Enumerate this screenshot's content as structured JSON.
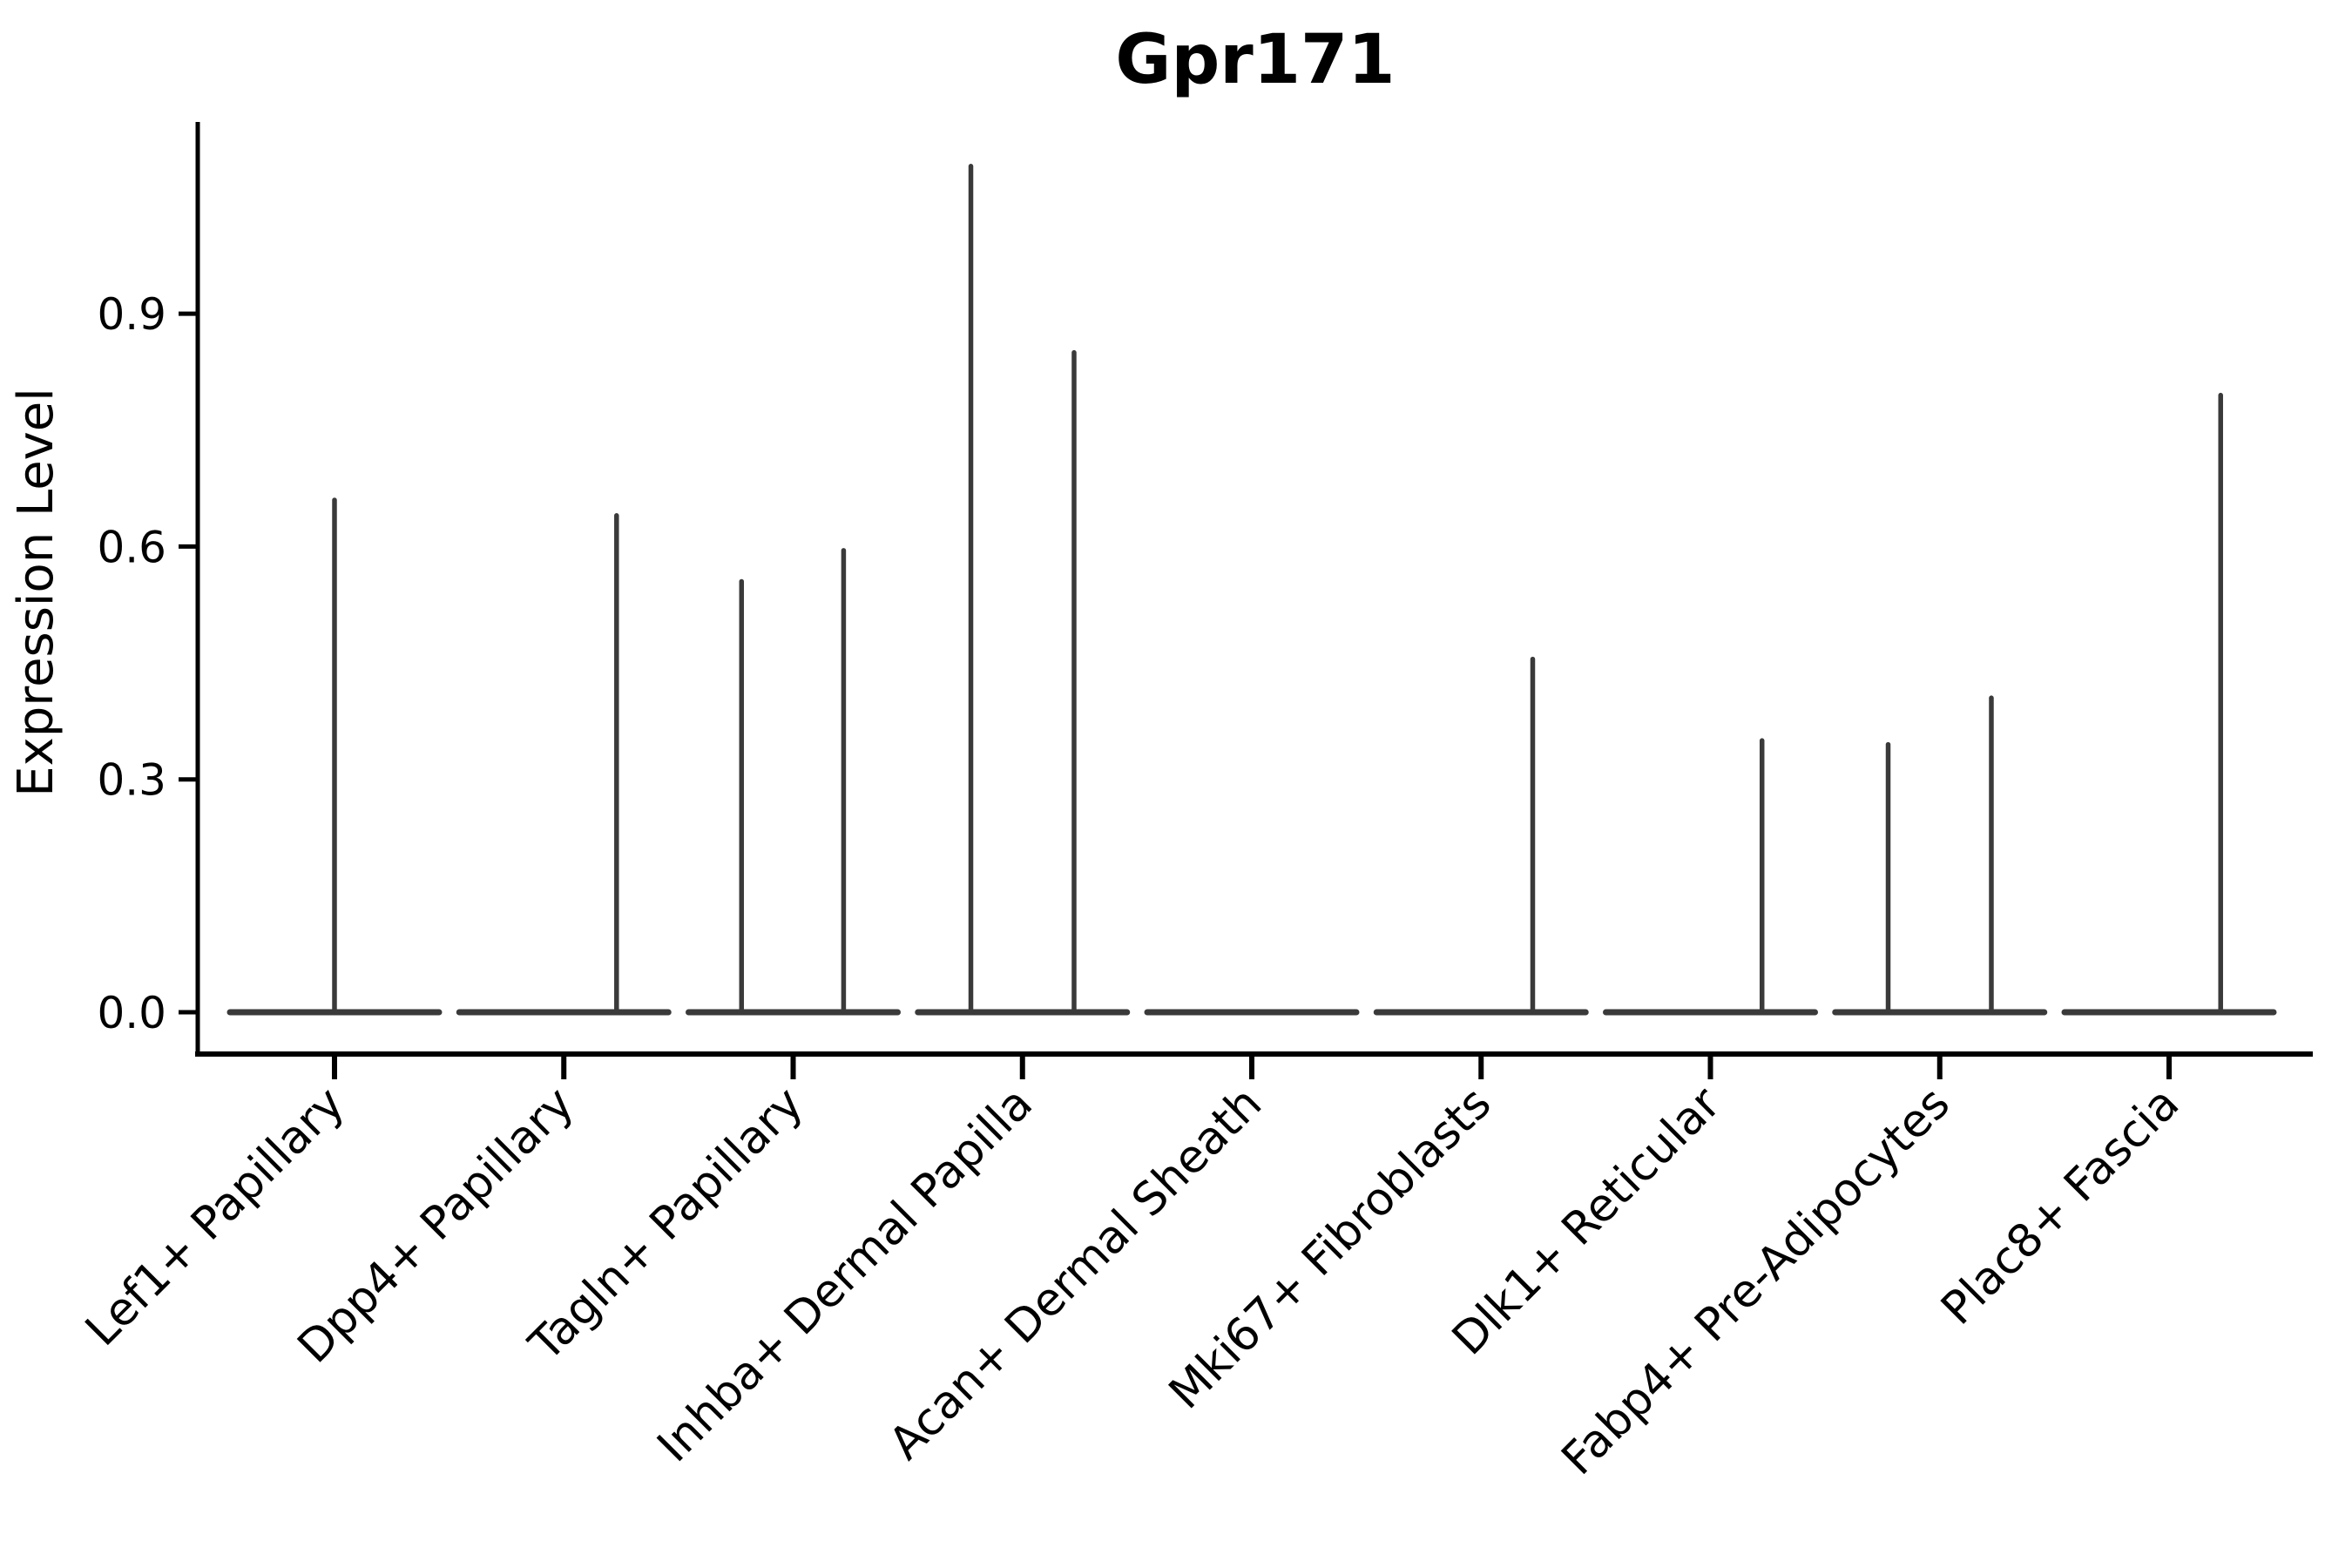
{
  "chart_data": {
    "type": "violin",
    "title": "Gpr171",
    "xlabel": "",
    "ylabel": "Expression Level",
    "ytick_labels": [
      "0.0",
      "0.3",
      "0.6",
      "0.9"
    ],
    "ylim": [
      -0.055,
      1.145
    ],
    "grid": false,
    "legend_position": "none",
    "violin_color": "#3a3a3a",
    "axis_color": "#000000",
    "categories": [
      {
        "label": "Lef1+ Papillary",
        "base_at_zero": true,
        "spikes": [
          {
            "value": 0.66,
            "offset": 0.0
          }
        ]
      },
      {
        "label": "Dpp4+ Papillary",
        "base_at_zero": true,
        "spikes": [
          {
            "value": 0.64,
            "offset": 0.23
          }
        ]
      },
      {
        "label": "Tagln+ Papillary",
        "base_at_zero": true,
        "spikes": [
          {
            "value": 0.555,
            "offset": -0.225
          },
          {
            "value": 0.595,
            "offset": 0.22
          }
        ]
      },
      {
        "label": "Inhba+ Dermal Papilla",
        "base_at_zero": true,
        "spikes": [
          {
            "value": 1.09,
            "offset": -0.225
          },
          {
            "value": 0.85,
            "offset": 0.225
          }
        ]
      },
      {
        "label": "Acan+ Dermal Sheath",
        "base_at_zero": true,
        "spikes": []
      },
      {
        "label": "Mki67+ Fibroblasts",
        "base_at_zero": true,
        "spikes": [
          {
            "value": 0.455,
            "offset": 0.225
          }
        ]
      },
      {
        "label": "Dlk1+ Reticular",
        "base_at_zero": true,
        "spikes": [
          {
            "value": 0.35,
            "offset": 0.225
          }
        ]
      },
      {
        "label": "Fabp4+ Pre-Adipocytes",
        "base_at_zero": true,
        "spikes": [
          {
            "value": 0.345,
            "offset": -0.225
          },
          {
            "value": 0.405,
            "offset": 0.225
          }
        ]
      },
      {
        "label": "Plac8+ Fascia",
        "base_at_zero": true,
        "spikes": [
          {
            "value": 0.795,
            "offset": 0.225
          }
        ]
      }
    ]
  }
}
